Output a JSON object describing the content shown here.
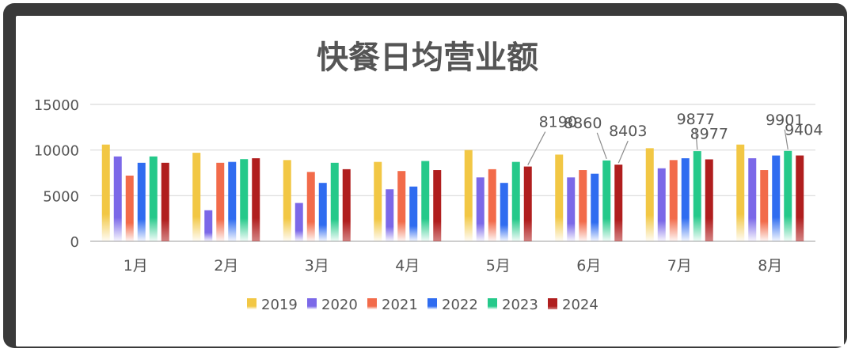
{
  "chart_data": {
    "type": "bar",
    "title": "快餐日均营业额",
    "xlabel": "",
    "ylabel": "",
    "ylim": [
      0,
      15000
    ],
    "yticks": [
      0,
      5000,
      10000,
      15000
    ],
    "grid": true,
    "legend_position": "bottom",
    "categories": [
      "1月",
      "2月",
      "3月",
      "4月",
      "5月",
      "6月",
      "7月",
      "8月"
    ],
    "series": [
      {
        "name": "2019",
        "color": "#f2c744",
        "values": [
          10600,
          9700,
          8900,
          8700,
          10000,
          9500,
          10200,
          10600
        ]
      },
      {
        "name": "2020",
        "color": "#7b68e8",
        "values": [
          9300,
          3400,
          4200,
          5700,
          7000,
          7000,
          8000,
          9100
        ]
      },
      {
        "name": "2021",
        "color": "#f26b4a",
        "values": [
          7200,
          8600,
          7600,
          7700,
          7900,
          7800,
          8900,
          7800
        ]
      },
      {
        "name": "2022",
        "color": "#2f6cf0",
        "values": [
          8600,
          8700,
          6400,
          6000,
          6400,
          7400,
          9100,
          9400
        ]
      },
      {
        "name": "2023",
        "color": "#25c98a",
        "values": [
          9300,
          9000,
          8600,
          8800,
          8700,
          8860,
          9877,
          9901
        ]
      },
      {
        "name": "2024",
        "color": "#b01e1e",
        "values": [
          8600,
          9100,
          7900,
          7800,
          8190,
          8403,
          8977,
          9404
        ]
      }
    ],
    "annotations": [
      {
        "text": "8190",
        "category": "5月",
        "series": "2024",
        "value": 8190
      },
      {
        "text": "8860",
        "category": "6月",
        "series": "2023",
        "value": 8860
      },
      {
        "text": "8403",
        "category": "6月",
        "series": "2024",
        "value": 8403
      },
      {
        "text": "9877",
        "category": "7月",
        "series": "2023",
        "value": 9877
      },
      {
        "text": "8977",
        "category": "7月",
        "series": "2024",
        "value": 8977
      },
      {
        "text": "9901",
        "category": "8月",
        "series": "2023",
        "value": 9901
      },
      {
        "text": "9404",
        "category": "8月",
        "series": "2024",
        "value": 9404
      }
    ]
  }
}
